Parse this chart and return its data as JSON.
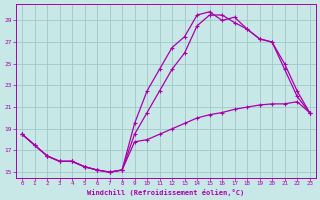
{
  "xlabel": "Windchill (Refroidissement éolien,°C)",
  "background_color": "#c8e8e8",
  "line_color": "#aa00aa",
  "grid_color": "#a0c8c8",
  "xlim": [
    -0.5,
    23.5
  ],
  "ylim": [
    14.5,
    30.5
  ],
  "yticks": [
    15,
    17,
    19,
    21,
    23,
    25,
    27,
    29
  ],
  "xticks": [
    0,
    1,
    2,
    3,
    4,
    5,
    6,
    7,
    8,
    9,
    10,
    11,
    12,
    13,
    14,
    15,
    16,
    17,
    18,
    19,
    20,
    21,
    22,
    23
  ],
  "line1_x": [
    0,
    1,
    2,
    3,
    4,
    5,
    6,
    7,
    8,
    9,
    10,
    11,
    12,
    13,
    14,
    15,
    16,
    17,
    18,
    19,
    20,
    21,
    22,
    23
  ],
  "line1_y": [
    18.5,
    17.5,
    16.5,
    16.0,
    16.0,
    15.5,
    15.2,
    15.0,
    15.2,
    17.8,
    18.0,
    18.5,
    19.0,
    19.5,
    20.0,
    20.3,
    20.5,
    20.8,
    21.0,
    21.2,
    21.3,
    21.3,
    21.5,
    20.5
  ],
  "line2_x": [
    0,
    1,
    2,
    3,
    4,
    5,
    6,
    7,
    8,
    9,
    10,
    11,
    12,
    13,
    14,
    15,
    16,
    17,
    18,
    19,
    20,
    21,
    22,
    23
  ],
  "line2_y": [
    18.5,
    17.5,
    16.5,
    16.0,
    16.0,
    15.5,
    15.2,
    15.0,
    15.2,
    19.5,
    22.5,
    24.5,
    26.5,
    27.5,
    29.5,
    29.8,
    29.0,
    29.3,
    28.2,
    27.3,
    27.0,
    24.5,
    22.0,
    20.5
  ],
  "line3_x": [
    0,
    1,
    2,
    3,
    4,
    5,
    6,
    7,
    8,
    9,
    10,
    11,
    12,
    13,
    14,
    15,
    16,
    17,
    18,
    19,
    20,
    21,
    22,
    23
  ],
  "line3_y": [
    18.5,
    17.5,
    16.5,
    16.0,
    16.0,
    15.5,
    15.2,
    15.0,
    15.2,
    18.5,
    20.5,
    22.5,
    24.5,
    26.0,
    28.5,
    29.5,
    29.5,
    28.8,
    28.2,
    27.3,
    27.0,
    25.0,
    22.5,
    20.5
  ]
}
